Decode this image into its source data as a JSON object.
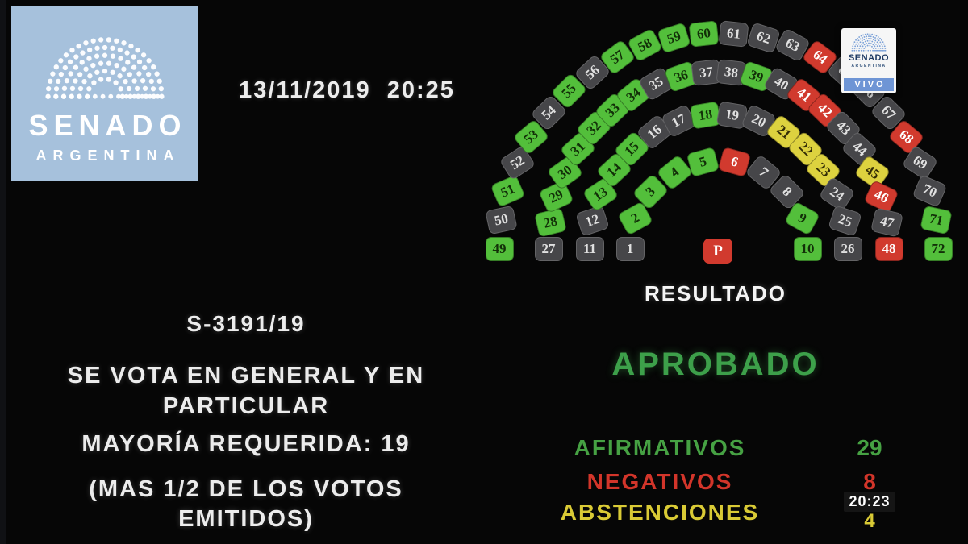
{
  "logo": {
    "title": "SENADO",
    "subtitle": "ARGENTINA"
  },
  "header": {
    "datetime": "13/11/2019 20:25"
  },
  "live_badge": {
    "title": "SENADO",
    "subtitle": "ARGENTINA",
    "live_label": "VIVO"
  },
  "motion": {
    "bill_id": "S-3191/19",
    "line1": "SE VOTA EN GENERAL Y EN",
    "line2": "PARTICULAR",
    "majority": "MAYORÍA REQUERIDA: 19",
    "note1": "(MAS 1/2 DE LOS VOTOS",
    "note2": "EMITIDOS)"
  },
  "result": {
    "heading": "RESULTADO",
    "verdict": "APROBADO",
    "verdict_color": "#3da04a",
    "rows": [
      {
        "label": "AFIRMATIVOS",
        "value": "29",
        "color": "#46a143"
      },
      {
        "label": "NEGATIVOS",
        "value": "8",
        "color": "#d2352a"
      },
      {
        "label": "ABSTENCIONES",
        "value": "4",
        "color": "#d9ca35"
      }
    ]
  },
  "clock_overlay": "20:23",
  "colors": {
    "afirmativo": "#53bf3b",
    "negativo": "#d13a2e",
    "abstencion": "#ddd23f",
    "ausente": "#464649",
    "logo_blue": "#a6c1dc",
    "live_bar_blue": "#6e95d5"
  },
  "seats": {
    "president": {
      "label": "P",
      "vote": "negativo"
    },
    "list": [
      {
        "n": 1,
        "v": "ausente"
      },
      {
        "n": 2,
        "v": "afirmativo"
      },
      {
        "n": 3,
        "v": "afirmativo"
      },
      {
        "n": 4,
        "v": "afirmativo"
      },
      {
        "n": 5,
        "v": "afirmativo"
      },
      {
        "n": 6,
        "v": "negativo"
      },
      {
        "n": 7,
        "v": "ausente"
      },
      {
        "n": 8,
        "v": "ausente"
      },
      {
        "n": 9,
        "v": "afirmativo"
      },
      {
        "n": 10,
        "v": "afirmativo"
      },
      {
        "n": 11,
        "v": "ausente"
      },
      {
        "n": 12,
        "v": "ausente"
      },
      {
        "n": 13,
        "v": "afirmativo"
      },
      {
        "n": 14,
        "v": "afirmativo"
      },
      {
        "n": 15,
        "v": "afirmativo"
      },
      {
        "n": 16,
        "v": "ausente"
      },
      {
        "n": 17,
        "v": "ausente"
      },
      {
        "n": 18,
        "v": "afirmativo"
      },
      {
        "n": 19,
        "v": "ausente"
      },
      {
        "n": 20,
        "v": "ausente"
      },
      {
        "n": 21,
        "v": "abstencion"
      },
      {
        "n": 22,
        "v": "abstencion"
      },
      {
        "n": 23,
        "v": "abstencion"
      },
      {
        "n": 24,
        "v": "ausente"
      },
      {
        "n": 25,
        "v": "ausente"
      },
      {
        "n": 26,
        "v": "ausente"
      },
      {
        "n": 27,
        "v": "ausente"
      },
      {
        "n": 28,
        "v": "afirmativo"
      },
      {
        "n": 29,
        "v": "afirmativo"
      },
      {
        "n": 30,
        "v": "afirmativo"
      },
      {
        "n": 31,
        "v": "afirmativo"
      },
      {
        "n": 32,
        "v": "afirmativo"
      },
      {
        "n": 33,
        "v": "afirmativo"
      },
      {
        "n": 34,
        "v": "afirmativo"
      },
      {
        "n": 35,
        "v": "ausente"
      },
      {
        "n": 36,
        "v": "afirmativo"
      },
      {
        "n": 37,
        "v": "ausente"
      },
      {
        "n": 38,
        "v": "ausente"
      },
      {
        "n": 39,
        "v": "afirmativo"
      },
      {
        "n": 40,
        "v": "ausente"
      },
      {
        "n": 41,
        "v": "negativo"
      },
      {
        "n": 42,
        "v": "negativo"
      },
      {
        "n": 43,
        "v": "ausente"
      },
      {
        "n": 44,
        "v": "ausente"
      },
      {
        "n": 45,
        "v": "abstencion"
      },
      {
        "n": 46,
        "v": "negativo"
      },
      {
        "n": 47,
        "v": "ausente"
      },
      {
        "n": 48,
        "v": "negativo"
      },
      {
        "n": 49,
        "v": "afirmativo"
      },
      {
        "n": 50,
        "v": "ausente"
      },
      {
        "n": 51,
        "v": "afirmativo"
      },
      {
        "n": 52,
        "v": "ausente"
      },
      {
        "n": 53,
        "v": "afirmativo"
      },
      {
        "n": 54,
        "v": "ausente"
      },
      {
        "n": 55,
        "v": "afirmativo"
      },
      {
        "n": 56,
        "v": "ausente"
      },
      {
        "n": 57,
        "v": "afirmativo"
      },
      {
        "n": 58,
        "v": "afirmativo"
      },
      {
        "n": 59,
        "v": "afirmativo"
      },
      {
        "n": 60,
        "v": "afirmativo"
      },
      {
        "n": 61,
        "v": "ausente"
      },
      {
        "n": 62,
        "v": "ausente"
      },
      {
        "n": 63,
        "v": "ausente"
      },
      {
        "n": 64,
        "v": "negativo"
      },
      {
        "n": 65,
        "v": "ausente"
      },
      {
        "n": 66,
        "v": "ausente"
      },
      {
        "n": 67,
        "v": "ausente"
      },
      {
        "n": 68,
        "v": "negativo"
      },
      {
        "n": 69,
        "v": "ausente"
      },
      {
        "n": 70,
        "v": "ausente"
      },
      {
        "n": 71,
        "v": "afirmativo"
      },
      {
        "n": 72,
        "v": "afirmativo"
      }
    ]
  }
}
